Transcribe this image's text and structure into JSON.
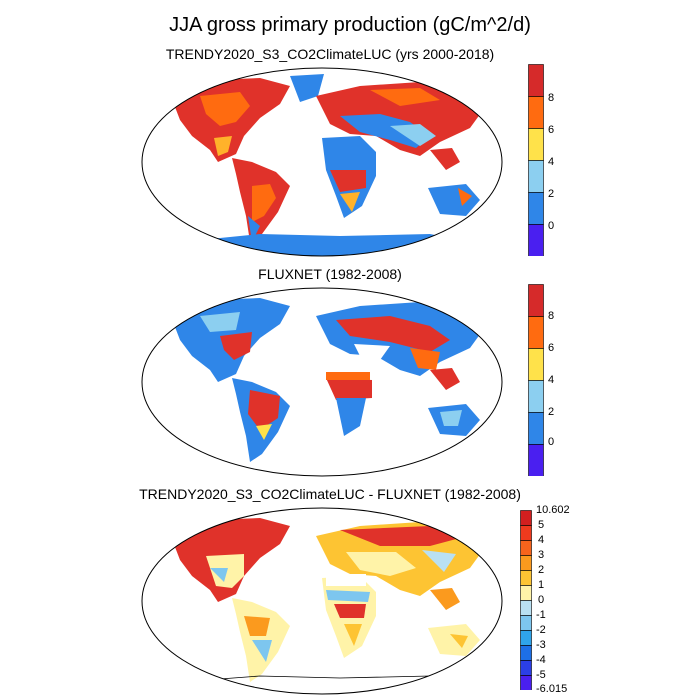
{
  "title": "JJA gross primary production (gC/m^2/d)",
  "panels": [
    {
      "title": "TRENDY2020_S3_CO2ClimateLUC (yrs 2000-2018)",
      "colorbar_labels": [
        "8",
        "6",
        "4",
        "2",
        "0"
      ],
      "colorbar_colors": [
        "#d62a2a",
        "#ff6b10",
        "#ffe24a",
        "#8ccff0",
        "#2f86e8",
        "#4a1ff0"
      ]
    },
    {
      "title": "FLUXNET (1982-2008)",
      "colorbar_labels": [
        "8",
        "6",
        "4",
        "2",
        "0"
      ],
      "colorbar_colors": [
        "#d62a2a",
        "#ff6b10",
        "#ffe24a",
        "#8ccff0",
        "#2f86e8",
        "#4a1ff0"
      ]
    },
    {
      "title": "TRENDY2020_S3_CO2ClimateLUC - FLUXNET (1982-2008)",
      "colorbar_labels": [
        "10.602",
        "5",
        "4",
        "3",
        "2",
        "1",
        "0",
        "-1",
        "-2",
        "-3",
        "-4",
        "-5",
        "-6.015"
      ],
      "colorbar_colors": [
        "#d21f1f",
        "#ef3a1e",
        "#f7641c",
        "#fb9a1e",
        "#fdc433",
        "#fff3a8",
        "#b9e0f2",
        "#7dc6ef",
        "#2fa4ea",
        "#1d6fe6",
        "#2b3fe6",
        "#4a1ff0"
      ]
    }
  ]
}
